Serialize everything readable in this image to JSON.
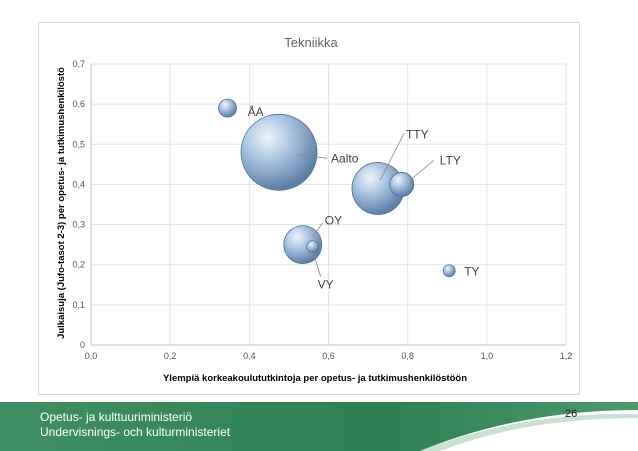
{
  "chart_data": {
    "type": "bubble",
    "title": "Tekniikka",
    "xlabel": "Ylempiä korkeakoulututkintoja per opetus- ja tutkimushenkilöstöön",
    "ylabel": "Julkaisuja (Jufo-tasot 2-3) per opetus- ja tutkimushenkilöstö",
    "xlim": [
      0,
      1.2
    ],
    "ylim": [
      0,
      0.7
    ],
    "x_ticks": [
      "0,0",
      "0,2",
      "0,4",
      "0,6",
      "0,8",
      "1,0",
      "1,2"
    ],
    "y_ticks": [
      "0",
      "0,1",
      "0,2",
      "0,3",
      "0,4",
      "0,5",
      "0,6",
      "0,7"
    ],
    "grid": true,
    "points": [
      {
        "label": "ÅA",
        "x": 0.345,
        "y": 0.59,
        "size": 9
      },
      {
        "label": "Aalto",
        "x": 0.475,
        "y": 0.48,
        "size": 38
      },
      {
        "label": "TTY",
        "x": 0.725,
        "y": 0.39,
        "size": 26
      },
      {
        "label": "LTY",
        "x": 0.785,
        "y": 0.4,
        "size": 12
      },
      {
        "label": "OY",
        "x": 0.535,
        "y": 0.25,
        "size": 19
      },
      {
        "label": "VY",
        "x": 0.56,
        "y": 0.245,
        "size": 6
      },
      {
        "label": "TY",
        "x": 0.905,
        "y": 0.185,
        "size": 6
      }
    ]
  },
  "footer": {
    "line1": "Opetus- ja kulttuuriministeriö",
    "line2": "Undervisnings- och kulturministeriet",
    "page_number": "26",
    "band_color": "#2e8b57"
  }
}
